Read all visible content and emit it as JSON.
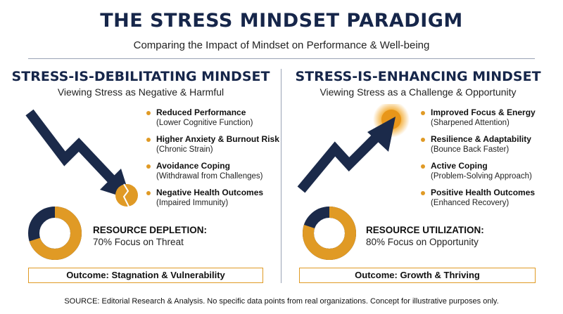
{
  "title": "THE STRESS MINDSET PARADIGM",
  "subtitle": "Comparing the Impact of Mindset on Performance & Well-being",
  "left": {
    "heading": "STRESS-IS-DEBILITATING MINDSET",
    "subheading": "Viewing Stress as Negative & Harmful",
    "items": [
      {
        "title": "Reduced Performance",
        "detail": "(Lower Cognitive Function)"
      },
      {
        "title": "Higher Anxiety & Burnout Risk",
        "detail": "(Chronic Strain)"
      },
      {
        "title": "Avoidance Coping",
        "detail": "(Withdrawal from Challenges)"
      },
      {
        "title": "Negative Health Outcomes",
        "detail": "(Impaired Immunity)"
      }
    ],
    "resource_title": "RESOURCE DEPLETION:",
    "resource_detail": "70% Focus on Threat",
    "resource_fraction": 0.7,
    "outcome": "Outcome: Stagnation & Vulnerability"
  },
  "right": {
    "heading": "STRESS-IS-ENHANCING MINDSET",
    "subheading": "Viewing Stress as a Challenge & Opportunity",
    "items": [
      {
        "title": "Improved Focus & Energy",
        "detail": "(Sharpened Attention)"
      },
      {
        "title": "Resilience & Adaptability",
        "detail": "(Bounce Back Faster)"
      },
      {
        "title": "Active Coping",
        "detail": "(Problem-Solving Approach)"
      },
      {
        "title": "Positive Health Outcomes",
        "detail": "(Enhanced Recovery)"
      }
    ],
    "resource_title": "RESOURCE UTILIZATION:",
    "resource_detail": "80% Focus on Opportunity",
    "resource_fraction": 0.8,
    "outcome": "Outcome: Growth & Thriving"
  },
  "footer": "SOURCE: Editorial Research & Analysis. No specific data points from real organizations. Concept for illustrative purposes only.",
  "colors": {
    "navy": "#1b2a4a",
    "gold": "#e09a25"
  }
}
